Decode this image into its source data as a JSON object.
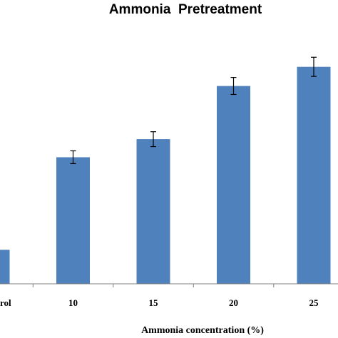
{
  "chart_data": {
    "type": "bar",
    "title": "Ammonia  Pretreatment",
    "xlabel": "Ammonia concentration (%)",
    "ylabel": "",
    "categories": [
      "Control",
      "10",
      "15",
      "20",
      "25"
    ],
    "visible_tick_labels": [
      "rol",
      "10",
      "15",
      "20",
      "25"
    ],
    "values": [
      1.6,
      5.95,
      6.8,
      9.3,
      10.2
    ],
    "errors": [
      0.0,
      0.3,
      0.35,
      0.4,
      0.45
    ],
    "ylim": [
      0,
      12
    ],
    "grid": false,
    "bar_color": "#4F81BD",
    "error_color": "#000000"
  }
}
